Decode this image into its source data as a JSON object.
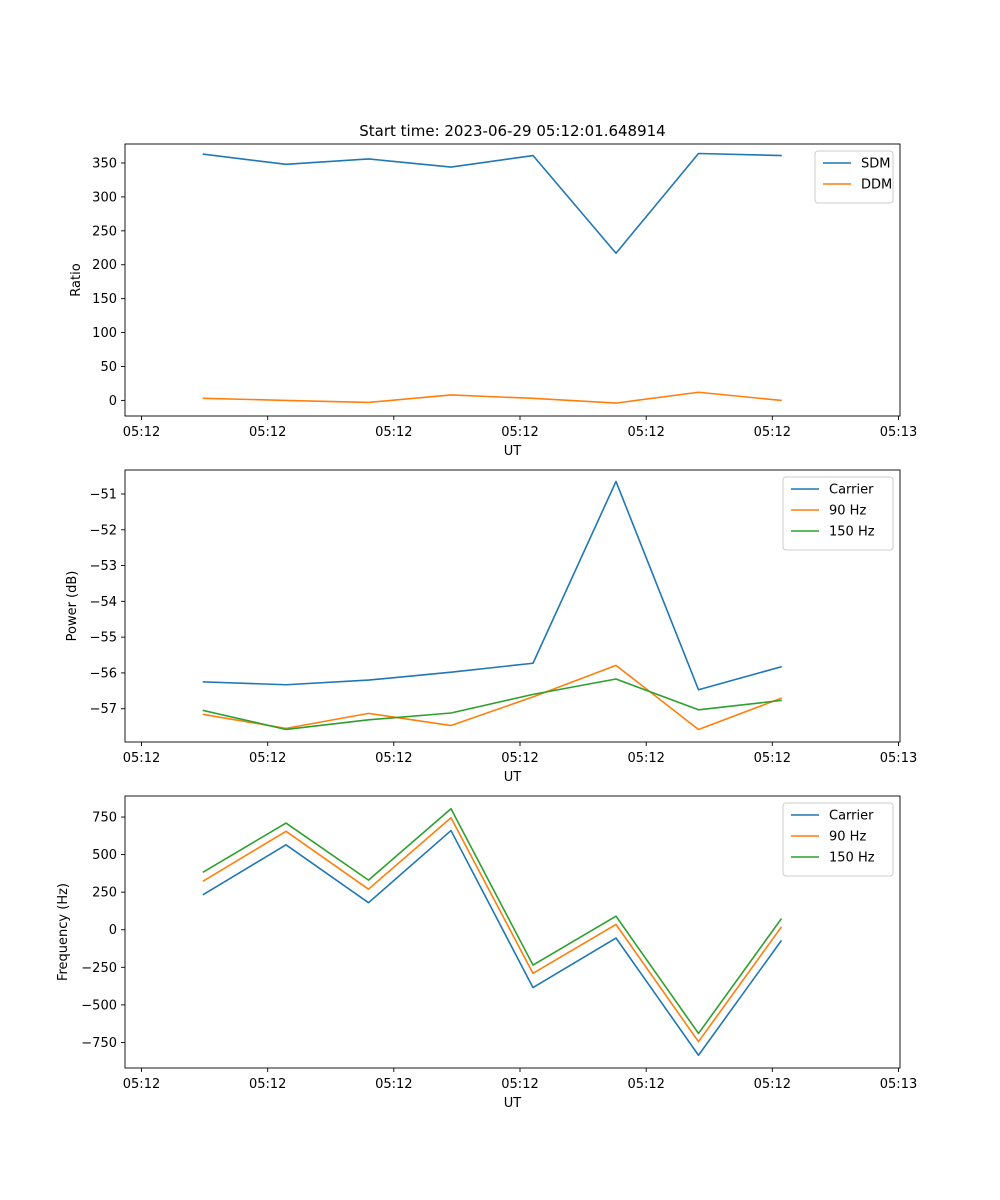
{
  "figure": {
    "title": "Start time: 2023-06-29 05:12:01.648914"
  },
  "chart_data": [
    {
      "type": "line",
      "xlabel": "UT",
      "ylabel": "Ratio",
      "x_tick_labels": [
        "05:12",
        "05:12",
        "05:12",
        "05:12",
        "05:12",
        "05:12",
        "05:13"
      ],
      "y_ticks": [
        0,
        50,
        100,
        150,
        200,
        250,
        300,
        350
      ],
      "y_tick_labels": [
        "0",
        "50",
        "100",
        "150",
        "200",
        "250",
        "300",
        "350"
      ],
      "ylim": [
        -23,
        378
      ],
      "grid": false,
      "legend": "top-right",
      "series": [
        {
          "name": "SDM",
          "color": "#1f77b4",
          "values": [
            363,
            348,
            356,
            344,
            361,
            217,
            364,
            361
          ]
        },
        {
          "name": "DDM",
          "color": "#ff7f0e",
          "values": [
            3,
            0,
            -3,
            8,
            3,
            -4,
            12,
            0
          ]
        }
      ]
    },
    {
      "type": "line",
      "xlabel": "UT",
      "ylabel": "Power (dB)",
      "x_tick_labels": [
        "05:12",
        "05:12",
        "05:12",
        "05:12",
        "05:12",
        "05:12",
        "05:13"
      ],
      "y_ticks": [
        -57,
        -56,
        -55,
        -54,
        -53,
        -52,
        -51
      ],
      "y_tick_labels": [
        "−57",
        "−56",
        "−55",
        "−54",
        "−53",
        "−52",
        "−51"
      ],
      "ylim": [
        -57.93,
        -50.33
      ],
      "grid": false,
      "legend": "top-right",
      "series": [
        {
          "name": "Carrier",
          "color": "#1f77b4",
          "values": [
            -56.25,
            -56.33,
            -56.2,
            -55.98,
            -55.73,
            -50.65,
            -56.47,
            -55.83
          ]
        },
        {
          "name": "90 Hz",
          "color": "#ff7f0e",
          "values": [
            -57.16,
            -57.55,
            -57.13,
            -57.47,
            -56.67,
            -55.79,
            -57.58,
            -56.71
          ]
        },
        {
          "name": "150 Hz",
          "color": "#2ca02c",
          "values": [
            -57.05,
            -57.58,
            -57.31,
            -57.12,
            -56.6,
            -56.17,
            -57.03,
            -56.77
          ]
        }
      ]
    },
    {
      "type": "line",
      "xlabel": "UT",
      "ylabel": "Frequency (Hz)",
      "x_tick_labels": [
        "05:12",
        "05:12",
        "05:12",
        "05:12",
        "05:12",
        "05:12",
        "05:13"
      ],
      "y_ticks": [
        -750,
        -500,
        -250,
        0,
        250,
        500,
        750
      ],
      "y_tick_labels": [
        "−750",
        "−500",
        "−250",
        "0",
        "250",
        "500",
        "750"
      ],
      "ylim": [
        -920,
        890
      ],
      "grid": false,
      "legend": "top-right",
      "series": [
        {
          "name": "Carrier",
          "color": "#1f77b4",
          "values": [
            235,
            565,
            180,
            660,
            -385,
            -55,
            -835,
            -75
          ]
        },
        {
          "name": "90 Hz",
          "color": "#ff7f0e",
          "values": [
            325,
            655,
            270,
            745,
            -290,
            35,
            -745,
            15
          ]
        },
        {
          "name": "150 Hz",
          "color": "#2ca02c",
          "values": [
            385,
            710,
            330,
            805,
            -235,
            90,
            -690,
            70
          ]
        }
      ]
    }
  ]
}
